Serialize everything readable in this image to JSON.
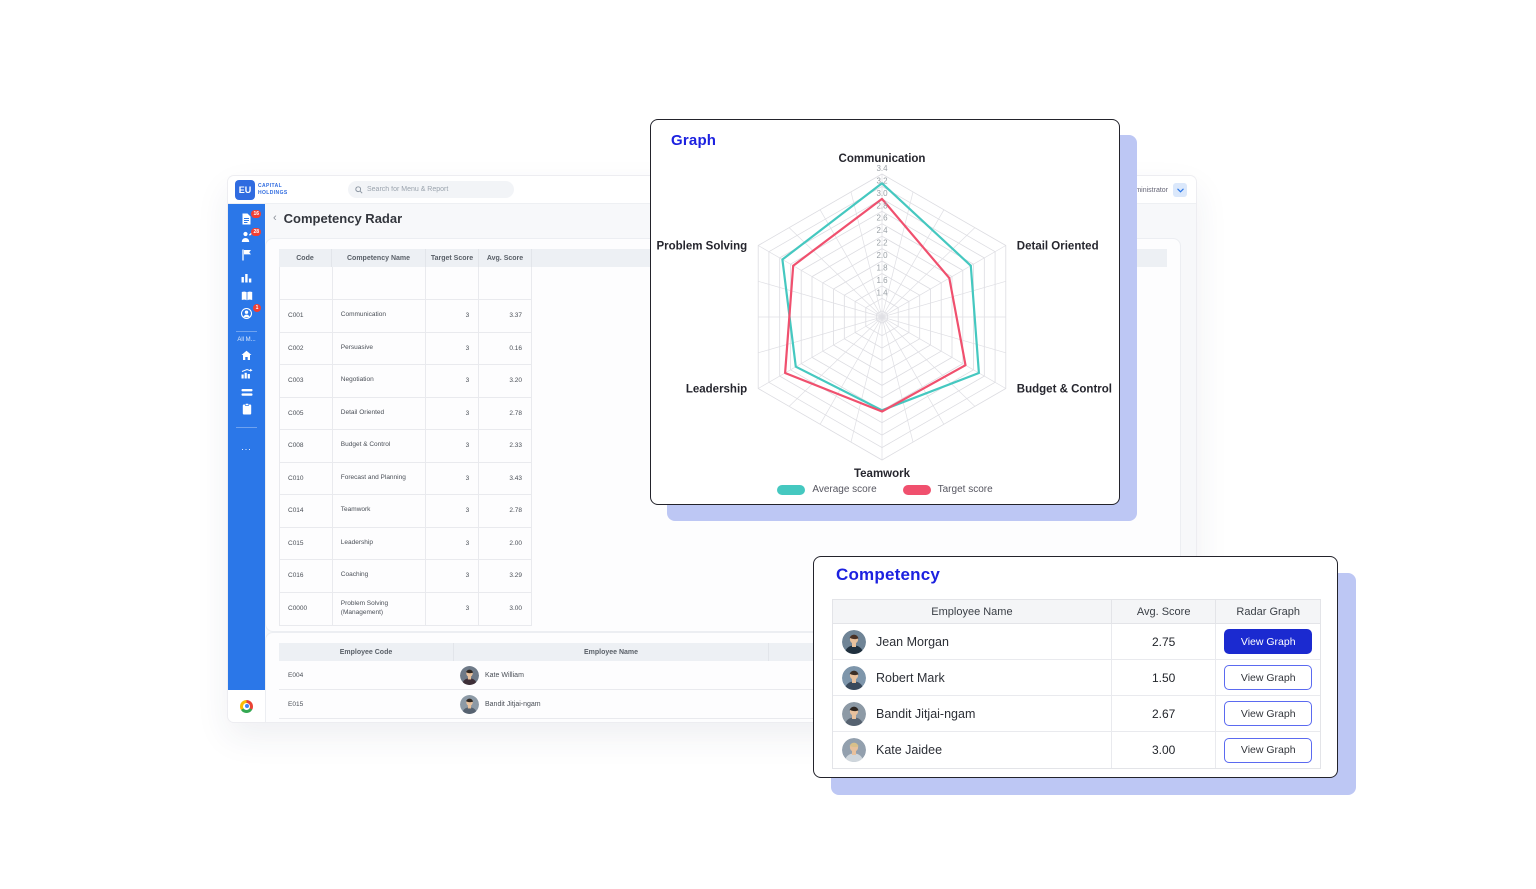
{
  "app": {
    "logo_mark": "EU",
    "logo_line1": "Capital",
    "logo_line2": "Holdings",
    "search_placeholder": "Search for Menu & Report",
    "user_role": "Administrator",
    "back_glyph": "‹",
    "page_title": "Competency Radar"
  },
  "sidebar": {
    "badge_documents": "16",
    "badge_people": "28",
    "badge_profile": "1",
    "section_label": "All M...",
    "more_glyph": "..."
  },
  "competency_table": {
    "headers": [
      "Code",
      "Competency Name",
      "Target Score",
      "Avg. Score"
    ],
    "rows": [
      {
        "code": "C001",
        "name": "Communication",
        "target": "3",
        "avg": "3.37"
      },
      {
        "code": "C002",
        "name": "Persuasive",
        "target": "3",
        "avg": "0.16"
      },
      {
        "code": "C003",
        "name": "Negotiation",
        "target": "3",
        "avg": "3.20"
      },
      {
        "code": "C005",
        "name": "Detail Oriented",
        "target": "3",
        "avg": "2.78"
      },
      {
        "code": "C008",
        "name": "Budget & Control",
        "target": "3",
        "avg": "2.33"
      },
      {
        "code": "C010",
        "name": "Forecast and Planning",
        "target": "3",
        "avg": "3.43"
      },
      {
        "code": "C014",
        "name": "Teamwork",
        "target": "3",
        "avg": "2.78"
      },
      {
        "code": "C015",
        "name": "Leadership",
        "target": "3",
        "avg": "2.00"
      },
      {
        "code": "C016",
        "name": "Coaching",
        "target": "3",
        "avg": "3.29"
      },
      {
        "code": "C0000",
        "name": "Problem Solving (Management)",
        "target": "3",
        "avg": "3.00"
      }
    ]
  },
  "employee_table": {
    "headers": [
      "Employee Code",
      "Employee Name"
    ],
    "rows": [
      {
        "code": "E004",
        "name": "Kate William",
        "avatar": {
          "bg": "#6e7a88",
          "hair": "#2f2620",
          "suit": "#3d2f38"
        }
      },
      {
        "code": "E015",
        "name": "Bandit Jitjai-ngam",
        "avatar": {
          "bg": "#8d9aa6",
          "hair": "#2e2620",
          "suit": "#566270"
        }
      },
      {
        "code": "",
        "name": "",
        "avatar": {
          "bg": "#7d8a97",
          "hair": "#333333",
          "suit": "#44505c"
        }
      }
    ]
  },
  "graph_card": {
    "title": "Graph"
  },
  "chart_data": {
    "type": "radar",
    "title": "Graph",
    "categories": [
      "Communication",
      "Detail Oriented",
      "Budget & Control",
      "Teamwork",
      "Leadership",
      "Problem Solving"
    ],
    "series": [
      {
        "name": "Average score",
        "color": "#45c8c0",
        "values": [
          3.25,
          2.75,
          2.9,
          2.6,
          2.7,
          2.95
        ]
      },
      {
        "name": "Target score",
        "color": "#f0506e",
        "values": [
          3.0,
          2.35,
          2.65,
          2.62,
          2.9,
          2.75
        ]
      }
    ],
    "ticks": [
      "1.4",
      "1.6",
      "1.8",
      "2.0",
      "2.2",
      "2.4",
      "2.6",
      "2.8",
      "3.0",
      "3.2",
      "3.4"
    ],
    "min": 1.1,
    "max": 3.4,
    "grid": true,
    "legend_position": "bottom"
  },
  "competency_card": {
    "title": "Competency",
    "headers": [
      "Employee Name",
      "Avg. Score",
      "Radar Graph"
    ],
    "button_label": "View Graph",
    "rows": [
      {
        "name": "Jean Morgan",
        "avg": "2.75",
        "button_style": "filled",
        "avatar": {
          "bg": "#6f8496",
          "hair": "#4a3226",
          "suit": "#20303e"
        }
      },
      {
        "name": "Robert Mark",
        "avg": "1.50",
        "button_style": "outline",
        "avatar": {
          "bg": "#7e96ab",
          "hair": "#3c2f26",
          "suit": "#3a4a5c"
        }
      },
      {
        "name": "Bandit Jitjai-ngam",
        "avg": "2.67",
        "button_style": "outline",
        "avatar": {
          "bg": "#8d9aa6",
          "hair": "#2e2620",
          "suit": "#566270"
        }
      },
      {
        "name": "Kate Jaidee",
        "avg": "3.00",
        "button_style": "outline",
        "avatar": {
          "bg": "#93a0ae",
          "hair": "#d9c08a",
          "suit": "#cfd6dc"
        }
      }
    ]
  },
  "colors": {
    "sidebar_blue": "#2b77e8",
    "logo_blue": "#2f6be0",
    "heading_blue": "#1c21e0",
    "button_blue": "#1b2ad0",
    "button_outline": "#5b6af0",
    "badge_red": "#f23f33",
    "average_teal": "#45c8c0",
    "target_pink": "#f0506e",
    "card_shadow_periwinkle": "#bdc7f4",
    "table_header_bg": "#edf0f4"
  }
}
